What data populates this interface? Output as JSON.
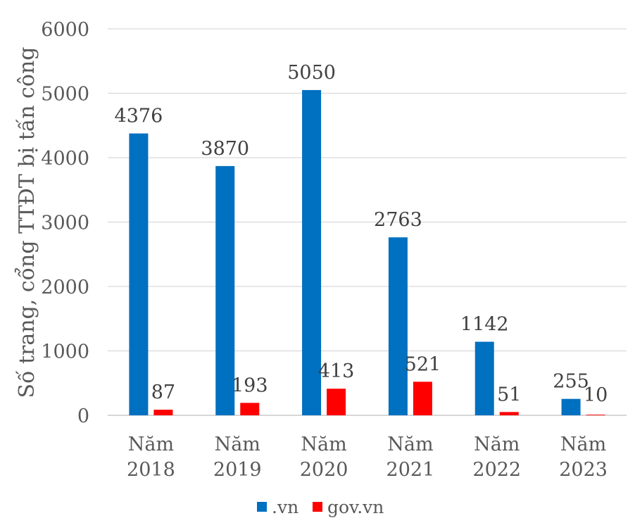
{
  "chart_data": {
    "type": "bar",
    "title": "",
    "xlabel": "",
    "ylabel": "Số trang, cổng TTĐT bị tấn công",
    "ylim": [
      0,
      6000
    ],
    "yticks": [
      0,
      1000,
      2000,
      3000,
      4000,
      5000,
      6000
    ],
    "ytick_labels": [
      "0",
      "1000",
      "2000",
      "3000",
      "4000",
      "5000",
      "6000"
    ],
    "grid": true,
    "legend_position": "bottom",
    "categories": [
      {
        "line1": "Năm",
        "line2": "2018"
      },
      {
        "line1": "Năm",
        "line2": "2019"
      },
      {
        "line1": "Năm",
        "line2": "2020"
      },
      {
        "line1": "Năm",
        "line2": "2021"
      },
      {
        "line1": "Năm",
        "line2": "2022"
      },
      {
        "line1": "Năm",
        "line2": "2023"
      }
    ],
    "series": [
      {
        "name": ".vn",
        "color": "#0070C0",
        "values": [
          4376,
          3870,
          5050,
          2763,
          1142,
          255
        ]
      },
      {
        "name": "gov.vn",
        "color": "#FF0000",
        "values": [
          87,
          193,
          413,
          521,
          51,
          10
        ]
      }
    ]
  }
}
